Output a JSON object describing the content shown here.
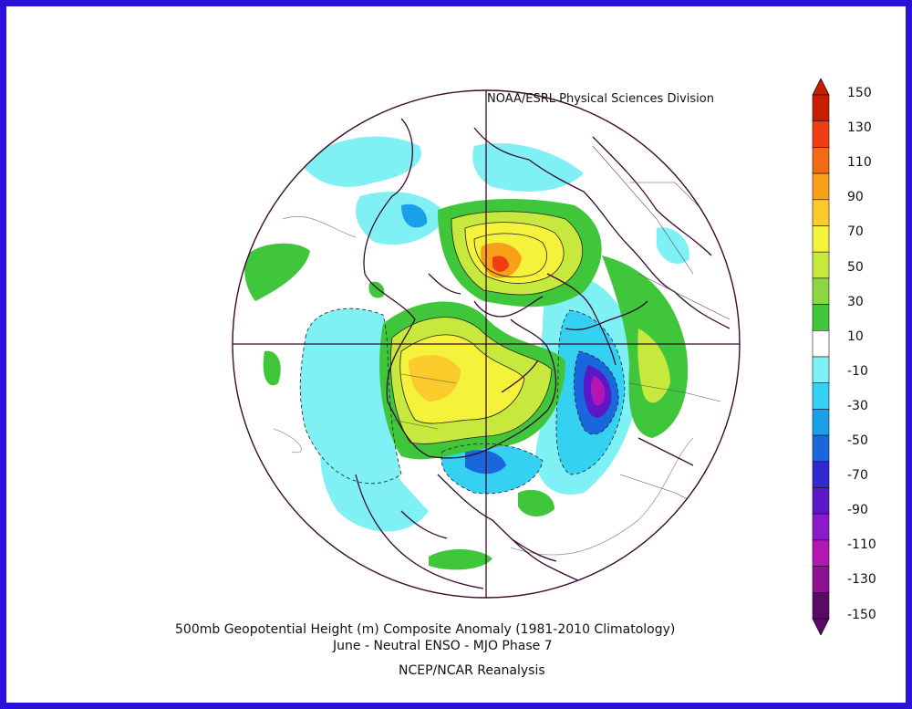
{
  "credit": "NOAA/ESRL Physical Sciences Division",
  "title_line1": "500mb Geopotential Height (m) Composite Anomaly (1981-2010 Climatology)",
  "title_line2": "June - Neutral ENSO - MJO Phase 7",
  "source": "NCEP/NCAR Reanalysis",
  "colorbar": {
    "labels": [
      "150",
      "130",
      "110",
      "90",
      "70",
      "50",
      "30",
      "10",
      "-10",
      "-30",
      "-50",
      "-70",
      "-90",
      "-110",
      "-130",
      "-150"
    ],
    "colors": [
      "#c81e00",
      "#ef3c12",
      "#f46a14",
      "#f8a01a",
      "#fbca2b",
      "#f5f23c",
      "#c7e83c",
      "#8cd844",
      "#3fc63a",
      "#ffffff",
      "#7ff0f4",
      "#34d1f2",
      "#1aa0e8",
      "#1a66dc",
      "#3228d0",
      "#5a18c8",
      "#8d1ac8",
      "#b416b4",
      "#8c1190",
      "#5a0a66"
    ]
  },
  "colors": {
    "frame": "#2a10d8",
    "coast": "#3b0a2e"
  }
}
